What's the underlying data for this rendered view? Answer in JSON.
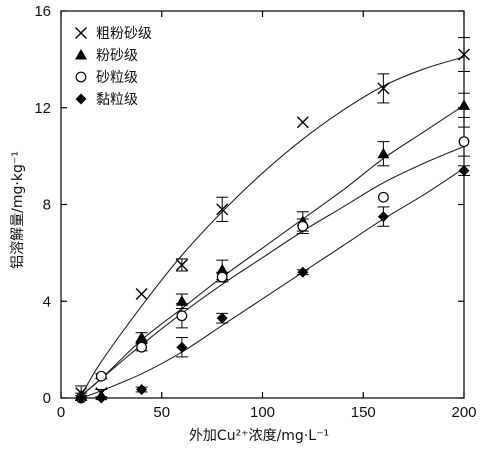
{
  "chart_data": {
    "type": "scatter",
    "xlabel": "外加Cu²⁺浓度/mg·L⁻¹",
    "ylabel": "铝溶解量/mg·kg⁻¹",
    "xlim": [
      0,
      200
    ],
    "ylim": [
      0,
      16
    ],
    "xticks": [
      0,
      50,
      100,
      150,
      200
    ],
    "yticks": [
      0,
      4,
      8,
      12,
      16
    ],
    "grid": false,
    "legend_position": "top-left",
    "series": [
      {
        "name": "粗粉砂级",
        "marker": "x",
        "x": [
          10,
          20,
          40,
          60,
          80,
          120,
          160,
          200
        ],
        "y": [
          0.2,
          0.2,
          4.3,
          5.5,
          7.8,
          11.4,
          12.8,
          14.2
        ],
        "err": [
          0.3,
          0.15,
          0,
          0.25,
          0.5,
          0,
          0.6,
          0.7
        ],
        "fit": [
          [
            10,
            0.1
          ],
          [
            20,
            1.5
          ],
          [
            40,
            3.8
          ],
          [
            60,
            5.9
          ],
          [
            80,
            7.7
          ],
          [
            100,
            9.3
          ],
          [
            120,
            10.7
          ],
          [
            140,
            11.9
          ],
          [
            160,
            12.9
          ],
          [
            180,
            13.6
          ],
          [
            200,
            14.1
          ]
        ]
      },
      {
        "name": "粉砂级",
        "marker": "triangle",
        "x": [
          10,
          20,
          40,
          60,
          80,
          120,
          160,
          200
        ],
        "y": [
          0.1,
          0.1,
          2.5,
          4.0,
          5.3,
          7.3,
          10.1,
          12.1
        ],
        "err": [
          0.1,
          0,
          0.2,
          0.3,
          0.4,
          0.4,
          0.5,
          0.5
        ],
        "fit": [
          [
            10,
            0.1
          ],
          [
            20,
            0.8
          ],
          [
            40,
            2.4
          ],
          [
            60,
            3.7
          ],
          [
            80,
            5.0
          ],
          [
            100,
            6.2
          ],
          [
            120,
            7.4
          ],
          [
            140,
            8.6
          ],
          [
            160,
            9.9
          ],
          [
            180,
            11.0
          ],
          [
            200,
            12.1
          ]
        ]
      },
      {
        "name": "砂粒级",
        "marker": "circle",
        "x": [
          10,
          20,
          40,
          60,
          80,
          120,
          160,
          200
        ],
        "y": [
          0.0,
          0.9,
          2.1,
          3.4,
          5.0,
          7.1,
          8.3,
          10.6
        ],
        "err": [
          0.1,
          0.1,
          0.15,
          0.5,
          0.2,
          0.3,
          0,
          0.6
        ],
        "fit": [
          [
            10,
            0.1
          ],
          [
            20,
            0.8
          ],
          [
            40,
            2.2
          ],
          [
            60,
            3.5
          ],
          [
            80,
            4.7
          ],
          [
            100,
            5.8
          ],
          [
            120,
            6.9
          ],
          [
            140,
            7.9
          ],
          [
            160,
            8.9
          ],
          [
            180,
            9.7
          ],
          [
            200,
            10.4
          ]
        ]
      },
      {
        "name": "黏粒级",
        "marker": "diamond",
        "x": [
          10,
          20,
          40,
          60,
          80,
          120,
          160,
          200
        ],
        "y": [
          0.0,
          0.0,
          0.35,
          2.1,
          3.3,
          5.2,
          7.5,
          9.4
        ],
        "err": [
          0,
          0,
          0.1,
          0.4,
          0.2,
          0.1,
          0.4,
          0.2
        ],
        "fit": [
          [
            10,
            0.0
          ],
          [
            20,
            0.3
          ],
          [
            40,
            1.0
          ],
          [
            60,
            1.9
          ],
          [
            80,
            3.0
          ],
          [
            100,
            4.1
          ],
          [
            120,
            5.2
          ],
          [
            140,
            6.3
          ],
          [
            160,
            7.4
          ],
          [
            180,
            8.4
          ],
          [
            200,
            9.5
          ]
        ]
      }
    ]
  }
}
